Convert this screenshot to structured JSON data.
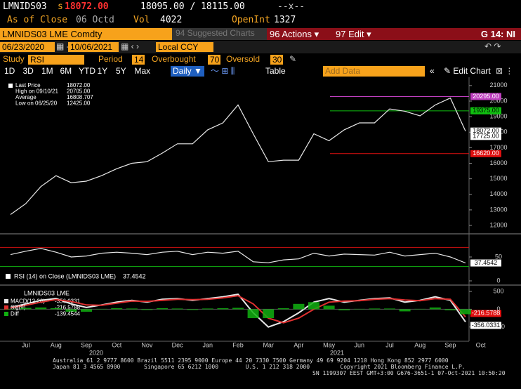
{
  "header": {
    "ticker": "LMNIDS03",
    "prefix": "s",
    "last": "18072.00",
    "bid_ask": "18095.00 / 18115.00",
    "change": "--x--",
    "as_of_label": "As of Close",
    "as_of_date": "06 Octd",
    "vol_label": "Vol",
    "vol": "4022",
    "oi_label": "OpenInt",
    "oi": "1327"
  },
  "toolbar": {
    "security": "LMNIDS03 LME Comdty",
    "suggested": "94 Suggested Charts",
    "actions": "96 Actions ▾",
    "edit": "97 Edit ▾",
    "page": "G 14: NI",
    "start_date": "06/23/2020",
    "end_date": "10/06/2021",
    "currency": "Local CCY",
    "study_label": "Study",
    "study": "RSI",
    "period_label": "Period",
    "period": "14",
    "overbought_label": "Overbought",
    "oversold_label": "Oversold",
    "ranges": [
      "1D",
      "3D",
      "1M",
      "6M",
      "YTD",
      "1Y",
      "5Y",
      "Max"
    ],
    "frequency": "Daily ▼",
    "table": "Table",
    "add_data": "Add Data",
    "edit_chart": "Edit Chart"
  },
  "chart_data": [
    {
      "type": "line",
      "series": [
        {
          "color": "#e8e8e8",
          "values": [
            12700,
            13400,
            14500,
            15200,
            14750,
            14850,
            15200,
            15650,
            16000,
            16100,
            16650,
            17250,
            17250,
            18150,
            18600,
            19750,
            17900,
            16100,
            16200,
            16200,
            17900,
            17450,
            18150,
            18600,
            18600,
            19500,
            19350,
            19050,
            19750,
            20200,
            18072,
            null
          ]
        }
      ],
      "stats": [
        {
          "label": "Last Price",
          "value": "18072.00"
        },
        {
          "label": "High on 09/10/21",
          "value": "20705.00"
        },
        {
          "label": "Average",
          "value": "16808.707"
        },
        {
          "label": "Low on 06/25/20",
          "value": "12425.00"
        }
      ],
      "levels": [
        {
          "value": 20295,
          "label": "20295.00",
          "color": "#c040c0"
        },
        {
          "value": 19375,
          "label": "19375.00",
          "color": "#10c010"
        },
        {
          "value": 18072,
          "label": "18072.00",
          "color": "#ffffff"
        },
        {
          "value": 17725,
          "label": "17725.00",
          "color": "#ffffff"
        },
        {
          "value": 16620,
          "label": "16620.00",
          "color": "#e01010"
        }
      ],
      "ylim": [
        11550,
        21400
      ],
      "yticks": [
        12000,
        13000,
        14000,
        15000,
        16000,
        17000,
        18000,
        19000,
        20000,
        21000
      ]
    },
    {
      "type": "line",
      "title": "RSI (14) on Close (LMNIDS03 LME)",
      "series": [
        {
          "color": "#e8e8e8",
          "values": [
            55,
            62,
            68,
            60,
            50,
            52,
            58,
            60,
            58,
            55,
            60,
            62,
            55,
            60,
            58,
            62,
            40,
            38,
            44,
            46,
            58,
            52,
            56,
            55,
            54,
            60,
            52,
            55,
            58,
            50,
            37.4542,
            null
          ]
        }
      ],
      "overbought": 70,
      "oversold": 30,
      "overbought_color": "#d01010",
      "oversold_color": "#10b010",
      "ylim": [
        0,
        100
      ],
      "yticks": [
        0,
        50
      ]
    },
    {
      "type": "macd",
      "title": "LMNIDS03 LME",
      "categories": [
        null,
        "Jul",
        null,
        "Aug",
        null,
        "Sep",
        null,
        "Oct",
        null,
        "Nov",
        null,
        "Dec",
        null,
        "Jan",
        null,
        "Feb",
        null,
        "Mar",
        null,
        "Apr",
        null,
        "May",
        null,
        "Jun",
        null,
        "Jul",
        null,
        "Aug",
        null,
        "Sep",
        null,
        "Oct"
      ],
      "year_labels": [
        "2020",
        "2021"
      ],
      "series": [
        {
          "name": "MACD(12,26)",
          "color": "#e8e8e8",
          "values": [
            50,
            150,
            250,
            300,
            150,
            50,
            120,
            200,
            250,
            200,
            280,
            300,
            250,
            300,
            350,
            420,
            -100,
            -500,
            -350,
            -100,
            200,
            300,
            200,
            250,
            300,
            320,
            200,
            250,
            350,
            250,
            -356.0331,
            null
          ]
        },
        {
          "name": "Sig(9)",
          "color": "#e03030",
          "values": [
            40,
            110,
            200,
            270,
            220,
            120,
            110,
            170,
            230,
            220,
            250,
            280,
            270,
            280,
            320,
            380,
            150,
            -250,
            -380,
            -250,
            0,
            200,
            230,
            240,
            280,
            300,
            260,
            240,
            300,
            280,
            -216.5788,
            null
          ]
        },
        {
          "name": "Diff",
          "color": "#10b010",
          "style": "bar",
          "values": [
            10,
            40,
            50,
            30,
            -70,
            -70,
            10,
            30,
            20,
            -20,
            30,
            20,
            -20,
            20,
            30,
            40,
            -250,
            -250,
            30,
            150,
            200,
            100,
            -30,
            10,
            20,
            20,
            -60,
            10,
            50,
            -30,
            -139.4544,
            null
          ]
        }
      ],
      "ylim": [
        -900,
        600
      ],
      "yticks": [
        -500,
        0,
        500
      ]
    }
  ],
  "footer": {
    "line1": "Australia 61 2 9777 8600 Brazil 5511 2395 9000 Europe 44 20 7330 7500 Germany 49 69 9204 1210 Hong Kong 852 2977 6000",
    "line2": "Japan 81 3 4565 8900       Singapore 65 6212 1000        U.S. 1 212 318 2000         Copyright 2021 Bloomberg Finance L.P.",
    "line3": "SN 1199307 EEST GMT+3:00 G676-3651-1 07-Oct-2021 10:50:20"
  }
}
